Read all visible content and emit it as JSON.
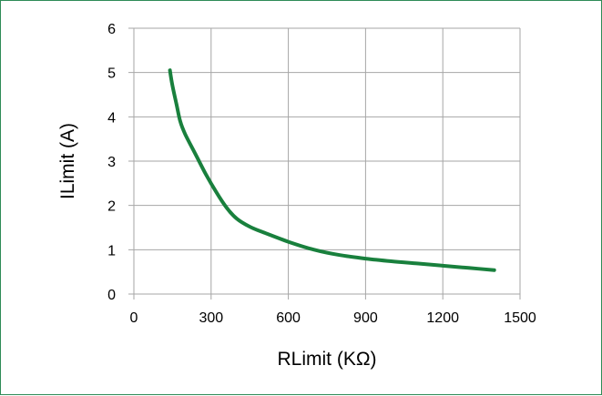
{
  "chart_data": {
    "type": "line",
    "title": "",
    "xlabel": "RLimit (KΩ)",
    "ylabel": "ILimit (A)",
    "xlim": [
      0,
      1500
    ],
    "ylim": [
      0,
      6
    ],
    "xticks": [
      0,
      300,
      600,
      900,
      1200,
      1500
    ],
    "yticks": [
      0,
      1,
      2,
      3,
      4,
      5,
      6
    ],
    "xtick_labels": [
      "0",
      "300",
      "600",
      "900",
      "1200",
      "1500"
    ],
    "ytick_labels": [
      "0",
      "1",
      "2",
      "3",
      "4",
      "5",
      "6"
    ],
    "grid": true,
    "legend": "none",
    "series": [
      {
        "color": "#19803d",
        "x": [
          140,
          150,
          165,
          180,
          200,
          240,
          280,
          320,
          360,
          400,
          450,
          500,
          600,
          700,
          800,
          900,
          1000,
          1100,
          1200,
          1300,
          1400
        ],
        "y": [
          5.05,
          4.7,
          4.3,
          3.9,
          3.6,
          3.15,
          2.7,
          2.3,
          1.95,
          1.7,
          1.52,
          1.4,
          1.18,
          1.0,
          0.88,
          0.8,
          0.74,
          0.69,
          0.64,
          0.59,
          0.54
        ]
      }
    ]
  }
}
